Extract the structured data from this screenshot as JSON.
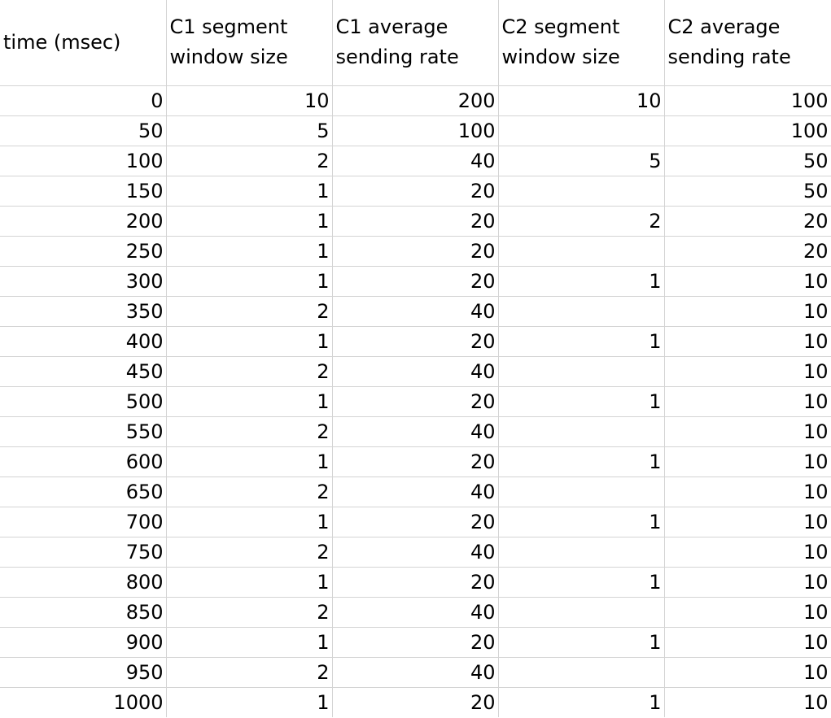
{
  "columns": [
    [
      "time (msec)"
    ],
    [
      "C1 segment",
      "window size"
    ],
    [
      "C1 average",
      "sending rate"
    ],
    [
      "C2 segment",
      "window size"
    ],
    [
      "C2 average",
      "sending rate"
    ]
  ],
  "rows": [
    [
      "0",
      "10",
      "200",
      "10",
      "100"
    ],
    [
      "50",
      "5",
      "100",
      "",
      "100"
    ],
    [
      "100",
      "2",
      "40",
      "5",
      "50"
    ],
    [
      "150",
      "1",
      "20",
      "",
      "50"
    ],
    [
      "200",
      "1",
      "20",
      "2",
      "20"
    ],
    [
      "250",
      "1",
      "20",
      "",
      "20"
    ],
    [
      "300",
      "1",
      "20",
      "1",
      "10"
    ],
    [
      "350",
      "2",
      "40",
      "",
      "10"
    ],
    [
      "400",
      "1",
      "20",
      "1",
      "10"
    ],
    [
      "450",
      "2",
      "40",
      "",
      "10"
    ],
    [
      "500",
      "1",
      "20",
      "1",
      "10"
    ],
    [
      "550",
      "2",
      "40",
      "",
      "10"
    ],
    [
      "600",
      "1",
      "20",
      "1",
      "10"
    ],
    [
      "650",
      "2",
      "40",
      "",
      "10"
    ],
    [
      "700",
      "1",
      "20",
      "1",
      "10"
    ],
    [
      "750",
      "2",
      "40",
      "",
      "10"
    ],
    [
      "800",
      "1",
      "20",
      "1",
      "10"
    ],
    [
      "850",
      "2",
      "40",
      "",
      "10"
    ],
    [
      "900",
      "1",
      "20",
      "1",
      "10"
    ],
    [
      "950",
      "2",
      "40",
      "",
      "10"
    ],
    [
      "1000",
      "1",
      "20",
      "1",
      "10"
    ]
  ],
  "colors": {
    "grid": "#d4d4d4",
    "text": "#000000",
    "background": "#ffffff"
  }
}
